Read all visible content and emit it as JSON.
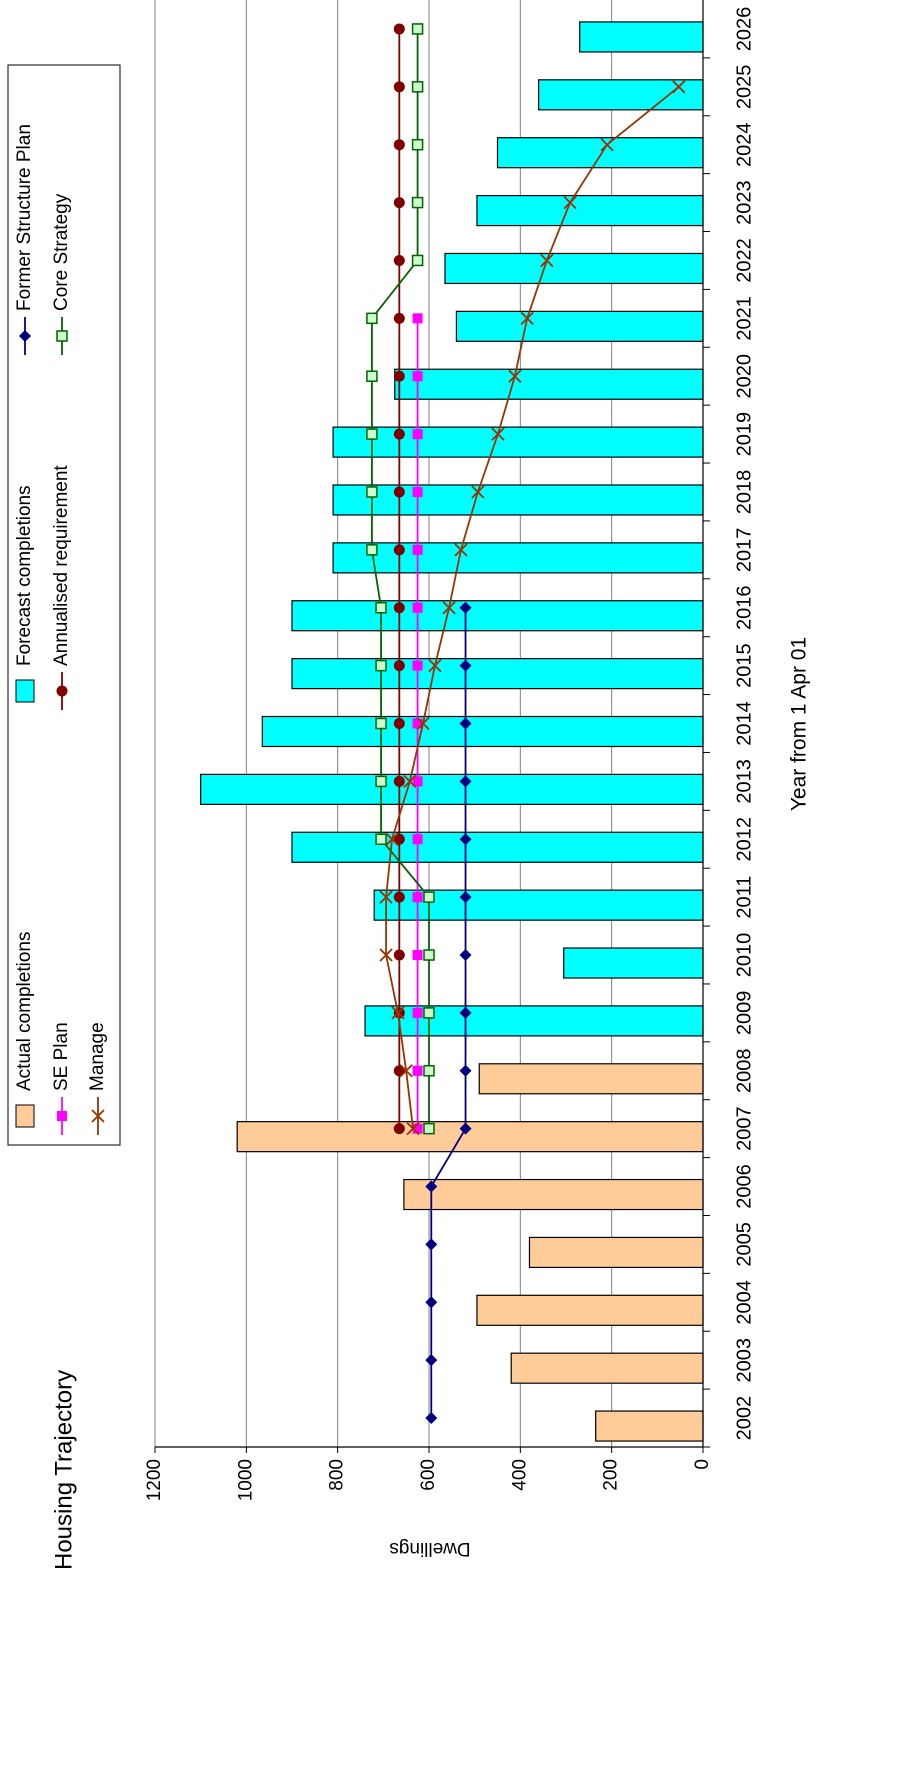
{
  "chart_data": {
    "type": "bar",
    "title": "Housing Trajectory",
    "x_label": "Year from 1 Apr 01",
    "y_label": "Dwellings",
    "categories": [
      "2002",
      "2003",
      "2004",
      "2005",
      "2006",
      "2007",
      "2008",
      "2009",
      "2010",
      "2011",
      "2012",
      "2013",
      "2014",
      "2015",
      "2016",
      "2017",
      "2018",
      "2019",
      "2020",
      "2021",
      "2022",
      "2023",
      "2024",
      "2025",
      "2026"
    ],
    "ylim": [
      0,
      1200
    ],
    "yticks": [
      0,
      200,
      400,
      600,
      800,
      1000,
      1200
    ],
    "grid": true,
    "series": [
      {
        "name": "Actual completions",
        "type": "bar",
        "color": "#FFCC99",
        "values": [
          235,
          420,
          495,
          380,
          655,
          1020,
          490,
          null,
          null,
          null,
          null,
          null,
          null,
          null,
          null,
          null,
          null,
          null,
          null,
          null,
          null,
          null,
          null,
          null,
          null
        ]
      },
      {
        "name": "Forecast completions",
        "type": "bar",
        "color": "#00FFFF",
        "values": [
          null,
          null,
          null,
          null,
          null,
          null,
          null,
          740,
          305,
          720,
          900,
          1100,
          965,
          900,
          900,
          810,
          810,
          810,
          675,
          540,
          565,
          495,
          450,
          360,
          270
        ]
      },
      {
        "name": "Former Structure Plan",
        "type": "line",
        "marker": "diamond",
        "color": "#000080",
        "values": [
          595,
          595,
          595,
          595,
          595,
          520,
          520,
          520,
          520,
          520,
          520,
          520,
          520,
          520,
          520,
          null,
          null,
          null,
          null,
          null,
          null,
          null,
          null,
          null,
          null
        ]
      },
      {
        "name": "SE Plan",
        "type": "line",
        "marker": "square",
        "color": "#FF00FF",
        "values": [
          null,
          null,
          null,
          null,
          null,
          625,
          625,
          625,
          625,
          625,
          625,
          625,
          625,
          625,
          625,
          625,
          625,
          625,
          625,
          625,
          null,
          null,
          null,
          null,
          null
        ]
      },
      {
        "name": "Annualised requirement",
        "type": "line",
        "marker": "circle",
        "color": "#800000",
        "values": [
          null,
          null,
          null,
          null,
          null,
          665,
          665,
          665,
          665,
          665,
          665,
          665,
          665,
          665,
          665,
          665,
          665,
          665,
          665,
          665,
          665,
          665,
          665,
          665,
          665
        ]
      },
      {
        "name": "Core Strategy",
        "type": "line",
        "marker": "open-square",
        "color": "#006400",
        "values": [
          null,
          null,
          null,
          null,
          null,
          600,
          600,
          600,
          600,
          600,
          705,
          705,
          705,
          705,
          705,
          725,
          725,
          725,
          725,
          725,
          625,
          625,
          625,
          625,
          625
        ]
      },
      {
        "name": "Manage",
        "type": "line",
        "marker": "x",
        "color": "#993300",
        "values": [
          null,
          null,
          null,
          null,
          null,
          635,
          650,
          668,
          694,
          694,
          681,
          642,
          613,
          587,
          556,
          530,
          493,
          449,
          412,
          385,
          342,
          291,
          210,
          53,
          null
        ]
      }
    ]
  }
}
